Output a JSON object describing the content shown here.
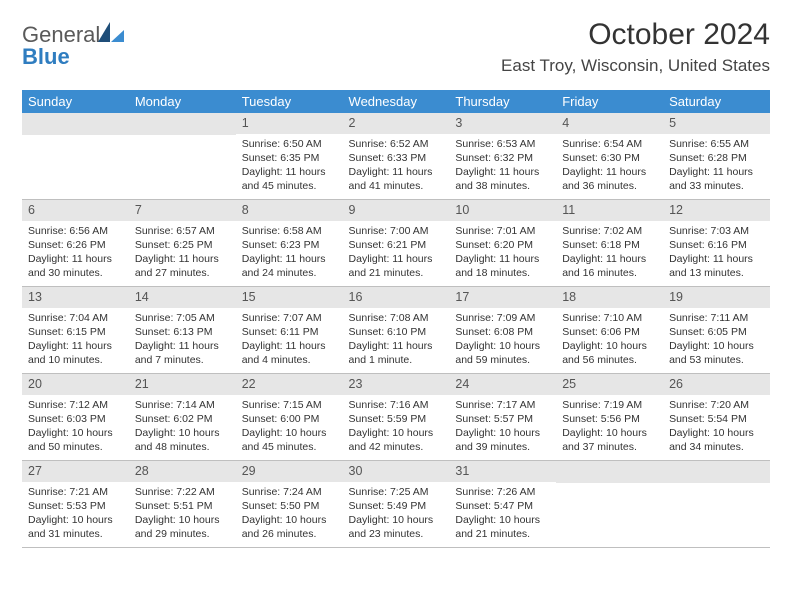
{
  "brand": {
    "word1": "General",
    "word2": "Blue"
  },
  "title": "October 2024",
  "location": "East Troy, Wisconsin, United States",
  "colors": {
    "header_bg": "#3b8cd0",
    "header_text": "#ffffff",
    "daynum_bg": "#e6e6e6",
    "rule": "#bfbfbf",
    "logo_grey": "#5a5a5a",
    "logo_blue": "#2f7dc0",
    "sail_dark": "#1f4e79",
    "sail_light": "#3b8cd0"
  },
  "day_headers": [
    "Sunday",
    "Monday",
    "Tuesday",
    "Wednesday",
    "Thursday",
    "Friday",
    "Saturday"
  ],
  "weeks": [
    [
      {
        "n": "",
        "sr": "",
        "ss": "",
        "dl": ""
      },
      {
        "n": "",
        "sr": "",
        "ss": "",
        "dl": ""
      },
      {
        "n": "1",
        "sr": "6:50 AM",
        "ss": "6:35 PM",
        "dl": "11 hours and 45 minutes."
      },
      {
        "n": "2",
        "sr": "6:52 AM",
        "ss": "6:33 PM",
        "dl": "11 hours and 41 minutes."
      },
      {
        "n": "3",
        "sr": "6:53 AM",
        "ss": "6:32 PM",
        "dl": "11 hours and 38 minutes."
      },
      {
        "n": "4",
        "sr": "6:54 AM",
        "ss": "6:30 PM",
        "dl": "11 hours and 36 minutes."
      },
      {
        "n": "5",
        "sr": "6:55 AM",
        "ss": "6:28 PM",
        "dl": "11 hours and 33 minutes."
      }
    ],
    [
      {
        "n": "6",
        "sr": "6:56 AM",
        "ss": "6:26 PM",
        "dl": "11 hours and 30 minutes."
      },
      {
        "n": "7",
        "sr": "6:57 AM",
        "ss": "6:25 PM",
        "dl": "11 hours and 27 minutes."
      },
      {
        "n": "8",
        "sr": "6:58 AM",
        "ss": "6:23 PM",
        "dl": "11 hours and 24 minutes."
      },
      {
        "n": "9",
        "sr": "7:00 AM",
        "ss": "6:21 PM",
        "dl": "11 hours and 21 minutes."
      },
      {
        "n": "10",
        "sr": "7:01 AM",
        "ss": "6:20 PM",
        "dl": "11 hours and 18 minutes."
      },
      {
        "n": "11",
        "sr": "7:02 AM",
        "ss": "6:18 PM",
        "dl": "11 hours and 16 minutes."
      },
      {
        "n": "12",
        "sr": "7:03 AM",
        "ss": "6:16 PM",
        "dl": "11 hours and 13 minutes."
      }
    ],
    [
      {
        "n": "13",
        "sr": "7:04 AM",
        "ss": "6:15 PM",
        "dl": "11 hours and 10 minutes."
      },
      {
        "n": "14",
        "sr": "7:05 AM",
        "ss": "6:13 PM",
        "dl": "11 hours and 7 minutes."
      },
      {
        "n": "15",
        "sr": "7:07 AM",
        "ss": "6:11 PM",
        "dl": "11 hours and 4 minutes."
      },
      {
        "n": "16",
        "sr": "7:08 AM",
        "ss": "6:10 PM",
        "dl": "11 hours and 1 minute."
      },
      {
        "n": "17",
        "sr": "7:09 AM",
        "ss": "6:08 PM",
        "dl": "10 hours and 59 minutes."
      },
      {
        "n": "18",
        "sr": "7:10 AM",
        "ss": "6:06 PM",
        "dl": "10 hours and 56 minutes."
      },
      {
        "n": "19",
        "sr": "7:11 AM",
        "ss": "6:05 PM",
        "dl": "10 hours and 53 minutes."
      }
    ],
    [
      {
        "n": "20",
        "sr": "7:12 AM",
        "ss": "6:03 PM",
        "dl": "10 hours and 50 minutes."
      },
      {
        "n": "21",
        "sr": "7:14 AM",
        "ss": "6:02 PM",
        "dl": "10 hours and 48 minutes."
      },
      {
        "n": "22",
        "sr": "7:15 AM",
        "ss": "6:00 PM",
        "dl": "10 hours and 45 minutes."
      },
      {
        "n": "23",
        "sr": "7:16 AM",
        "ss": "5:59 PM",
        "dl": "10 hours and 42 minutes."
      },
      {
        "n": "24",
        "sr": "7:17 AM",
        "ss": "5:57 PM",
        "dl": "10 hours and 39 minutes."
      },
      {
        "n": "25",
        "sr": "7:19 AM",
        "ss": "5:56 PM",
        "dl": "10 hours and 37 minutes."
      },
      {
        "n": "26",
        "sr": "7:20 AM",
        "ss": "5:54 PM",
        "dl": "10 hours and 34 minutes."
      }
    ],
    [
      {
        "n": "27",
        "sr": "7:21 AM",
        "ss": "5:53 PM",
        "dl": "10 hours and 31 minutes."
      },
      {
        "n": "28",
        "sr": "7:22 AM",
        "ss": "5:51 PM",
        "dl": "10 hours and 29 minutes."
      },
      {
        "n": "29",
        "sr": "7:24 AM",
        "ss": "5:50 PM",
        "dl": "10 hours and 26 minutes."
      },
      {
        "n": "30",
        "sr": "7:25 AM",
        "ss": "5:49 PM",
        "dl": "10 hours and 23 minutes."
      },
      {
        "n": "31",
        "sr": "7:26 AM",
        "ss": "5:47 PM",
        "dl": "10 hours and 21 minutes."
      },
      {
        "n": "",
        "sr": "",
        "ss": "",
        "dl": ""
      },
      {
        "n": "",
        "sr": "",
        "ss": "",
        "dl": ""
      }
    ]
  ],
  "labels": {
    "sunrise": "Sunrise:",
    "sunset": "Sunset:",
    "daylight": "Daylight:"
  }
}
